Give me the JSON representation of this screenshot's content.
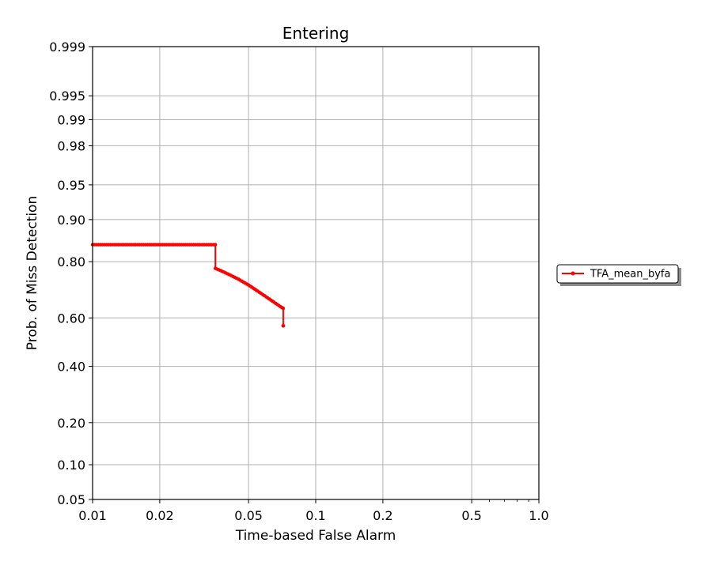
{
  "chart_data": {
    "type": "line",
    "title": "Entering",
    "xlabel": "Time-based False Alarm",
    "ylabel": "Prob. of Miss Detection",
    "x_scale": "log",
    "y_scale": "probit",
    "xlim": [
      0.01,
      1.0
    ],
    "ylim": [
      0.05,
      0.999
    ],
    "x_ticks": [
      0.01,
      0.02,
      0.05,
      0.1,
      0.2,
      0.5,
      1.0
    ],
    "x_tick_labels": [
      "0.01",
      "0.02",
      "0.05",
      "0.1",
      "0.2",
      "0.5",
      "1.0"
    ],
    "y_ticks": [
      0.05,
      0.1,
      0.2,
      0.4,
      0.6,
      0.8,
      0.9,
      0.95,
      0.98,
      0.99,
      0.995,
      0.999
    ],
    "y_tick_labels": [
      "0.05",
      "0.10",
      "0.20",
      "0.40",
      "0.60",
      "0.80",
      "0.90",
      "0.95",
      "0.98",
      "0.99",
      "0.995",
      "0.999"
    ],
    "grid": true,
    "legend_position": "outside-right",
    "series": [
      {
        "name": "TFA_mean_byfa",
        "color": "#ff0000",
        "marker": "dot",
        "x": [
          0.01,
          0.012,
          0.015,
          0.018,
          0.021,
          0.025,
          0.029,
          0.033,
          0.0355,
          0.0355,
          0.038,
          0.041,
          0.045,
          0.05,
          0.055,
          0.06,
          0.065,
          0.0695,
          0.0715,
          0.0715
        ],
        "y": [
          0.846,
          0.846,
          0.846,
          0.846,
          0.846,
          0.846,
          0.846,
          0.846,
          0.846,
          0.78,
          0.771,
          0.76,
          0.745,
          0.725,
          0.703,
          0.682,
          0.662,
          0.645,
          0.638,
          0.568
        ]
      }
    ]
  }
}
